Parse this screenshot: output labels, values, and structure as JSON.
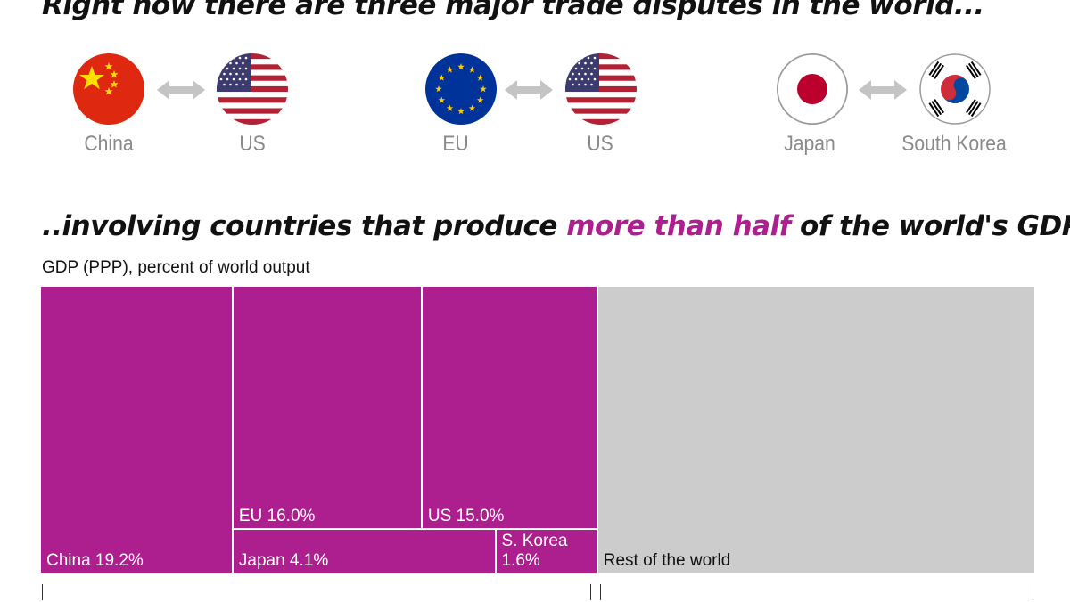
{
  "headline1": "Right now there are three major trade disputes in the world...",
  "headline2": {
    "before": "..involving countries that produce ",
    "highlight": "more than half",
    "after": " of the world's GDP"
  },
  "disputes": [
    {
      "left": {
        "name": "China",
        "flag": "china-flag"
      },
      "right": {
        "name": "US",
        "flag": "us-flag"
      }
    },
    {
      "left": {
        "name": "EU",
        "flag": "eu-flag"
      },
      "right": {
        "name": "US",
        "flag": "us-flag"
      }
    },
    {
      "left": {
        "name": "Japan",
        "flag": "japan-flag"
      },
      "right": {
        "name": "South Korea",
        "flag": "south-korea-flag"
      }
    }
  ],
  "chart_data": {
    "type": "treemap",
    "subtitle": "GDP (PPP), percent of world output",
    "cells": [
      {
        "label": "China 19.2%",
        "country": "China",
        "value": 19.2
      },
      {
        "label": "EU 16.0%",
        "country": "EU",
        "value": 16.0
      },
      {
        "label": "US 15.0%",
        "country": "US",
        "value": 15.0
      },
      {
        "label": "Japan 4.1%",
        "country": "Japan",
        "value": 4.1
      },
      {
        "label": "S. Korea\n1.6%",
        "country": "S. Korea",
        "value": 1.6
      },
      {
        "label": "Rest of the world",
        "country": "Rest of the world"
      }
    ]
  },
  "colors": {
    "highlight": "#ad1f8f",
    "rest": "#cccccc",
    "arrow": "#c4c4c4",
    "country_label": "#8a8a8a"
  }
}
